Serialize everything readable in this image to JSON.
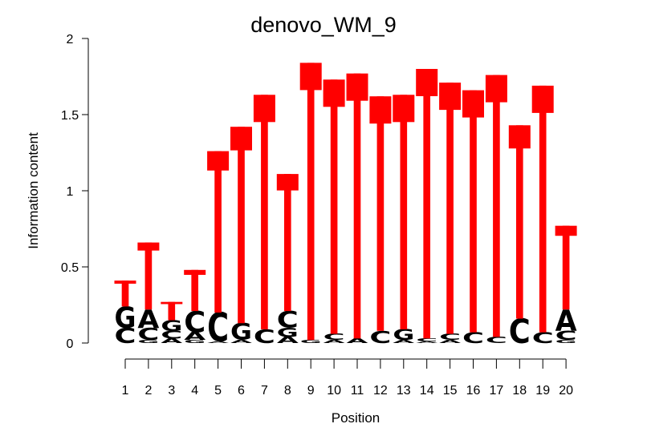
{
  "chart_data": {
    "type": "sequence-logo",
    "title": "denovo_WM_9",
    "xlabel": "Position",
    "ylabel": "Information content",
    "ylim": [
      0,
      2
    ],
    "y_ticks": [
      "0",
      "0.5",
      "1",
      "1.5",
      "2"
    ],
    "x_ticks": [
      "1",
      "2",
      "3",
      "4",
      "5",
      "6",
      "7",
      "8",
      "9",
      "10",
      "11",
      "12",
      "13",
      "14",
      "15",
      "16",
      "17",
      "18",
      "19",
      "20"
    ],
    "colors": {
      "A": "#00cc00",
      "C": "#0000cc",
      "G": "#ffb300",
      "T": "#ff0000"
    },
    "positions": [
      {
        "pos": "1",
        "letters": [
          [
            "C",
            0.1
          ],
          [
            "G",
            0.14
          ],
          [
            "T",
            0.17
          ]
        ]
      },
      {
        "pos": "2",
        "letters": [
          [
            "G",
            0.02
          ],
          [
            "C",
            0.08
          ],
          [
            "A",
            0.12
          ],
          [
            "T",
            0.44
          ]
        ]
      },
      {
        "pos": "3",
        "letters": [
          [
            "A",
            0.03
          ],
          [
            "C",
            0.05
          ],
          [
            "G",
            0.07
          ],
          [
            "T",
            0.12
          ]
        ]
      },
      {
        "pos": "4",
        "letters": [
          [
            "G",
            0.02
          ],
          [
            "A",
            0.05
          ],
          [
            "C",
            0.14
          ],
          [
            "T",
            0.27
          ]
        ]
      },
      {
        "pos": "5",
        "letters": [
          [
            "A",
            0.01
          ],
          [
            "C",
            0.19
          ],
          [
            "T",
            1.06
          ]
        ]
      },
      {
        "pos": "6",
        "letters": [
          [
            "A",
            0.02
          ],
          [
            "G",
            0.11
          ],
          [
            "T",
            1.29
          ]
        ]
      },
      {
        "pos": "7",
        "letters": [
          [
            "C",
            0.09
          ],
          [
            "T",
            1.54
          ]
        ]
      },
      {
        "pos": "8",
        "letters": [
          [
            "A",
            0.04
          ],
          [
            "G",
            0.06
          ],
          [
            "C",
            0.11
          ],
          [
            "T",
            0.9
          ]
        ]
      },
      {
        "pos": "9",
        "letters": [
          [
            "G",
            0.02
          ],
          [
            "T",
            1.82
          ]
        ]
      },
      {
        "pos": "10",
        "letters": [
          [
            "A",
            0.02
          ],
          [
            "C",
            0.04
          ],
          [
            "T",
            1.67
          ]
        ]
      },
      {
        "pos": "11",
        "letters": [
          [
            "A",
            0.03
          ],
          [
            "T",
            1.74
          ]
        ]
      },
      {
        "pos": "12",
        "letters": [
          [
            "C",
            0.08
          ],
          [
            "T",
            1.54
          ]
        ]
      },
      {
        "pos": "13",
        "letters": [
          [
            "A",
            0.02
          ],
          [
            "G",
            0.07
          ],
          [
            "T",
            1.54
          ]
        ]
      },
      {
        "pos": "14",
        "letters": [
          [
            "A",
            0.01
          ],
          [
            "C",
            0.02
          ],
          [
            "T",
            1.77
          ]
        ]
      },
      {
        "pos": "15",
        "letters": [
          [
            "A",
            0.02
          ],
          [
            "C",
            0.04
          ],
          [
            "T",
            1.65
          ]
        ]
      },
      {
        "pos": "16",
        "letters": [
          [
            "C",
            0.07
          ],
          [
            "T",
            1.59
          ]
        ]
      },
      {
        "pos": "17",
        "letters": [
          [
            "C",
            0.04
          ],
          [
            "T",
            1.72
          ]
        ]
      },
      {
        "pos": "18",
        "letters": [
          [
            "C",
            0.16
          ],
          [
            "T",
            1.27
          ]
        ]
      },
      {
        "pos": "19",
        "letters": [
          [
            "C",
            0.07
          ],
          [
            "T",
            1.62
          ]
        ]
      },
      {
        "pos": "20",
        "letters": [
          [
            "G",
            0.02
          ],
          [
            "C",
            0.06
          ],
          [
            "A",
            0.14
          ],
          [
            "T",
            0.55
          ]
        ]
      }
    ]
  }
}
